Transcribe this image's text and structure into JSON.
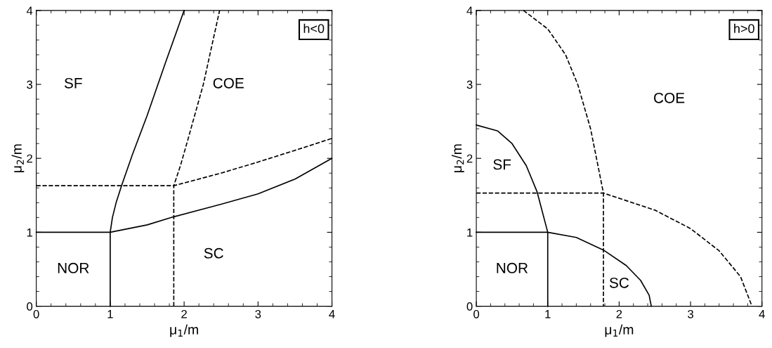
{
  "chart_data": [
    {
      "type": "line",
      "xlabel": "μ$_{1}$/m",
      "ylabel": "μ$_{2}$/m",
      "xlim": [
        0,
        4
      ],
      "ylim": [
        0,
        4
      ],
      "xticks": [
        0,
        1,
        2,
        3,
        4
      ],
      "yticks": [
        0,
        1,
        2,
        3,
        4
      ],
      "grid": false,
      "legend": false,
      "annotations": [
        "h<0",
        "SF",
        "COE",
        "NOR",
        "SC"
      ],
      "series": [
        {
          "color": "#000000",
          "line_style": "solid",
          "x": [
            0,
            1,
            1.5,
            1.86,
            2.5,
            3,
            3.5,
            4
          ],
          "values": [
            1,
            1,
            1.1,
            1.21,
            1.38,
            1.52,
            1.72,
            2.0
          ]
        },
        {
          "color": "#000000",
          "line_style": "solid",
          "x": [
            1,
            1,
            1.03,
            1.08,
            1.15,
            1.3,
            1.5,
            1.75,
            2.0
          ],
          "values": [
            0,
            1,
            1.2,
            1.4,
            1.62,
            2.05,
            2.58,
            3.3,
            4
          ]
        },
        {
          "color": "#000000",
          "line_style": "dashed",
          "x": [
            0,
            1.86,
            2.5,
            3,
            3.6,
            4
          ],
          "values": [
            1.63,
            1.63,
            1.8,
            1.95,
            2.14,
            2.27
          ]
        },
        {
          "color": "#000000",
          "line_style": "dashed",
          "x": [
            1.86,
            1.86,
            1.95,
            2.05,
            2.26,
            2.48
          ],
          "values": [
            0,
            1.63,
            1.9,
            2.25,
            3.0,
            4
          ]
        }
      ]
    },
    {
      "type": "line",
      "xlabel": "μ$_{1}$/m",
      "ylabel": "μ$_{2}$/m",
      "xlim": [
        0,
        4
      ],
      "ylim": [
        0,
        4
      ],
      "xticks": [
        0,
        1,
        2,
        3,
        4
      ],
      "yticks": [
        0,
        1,
        2,
        3,
        4
      ],
      "grid": false,
      "legend": false,
      "annotations": [
        "h>0",
        "SF",
        "COE",
        "NOR",
        "SC"
      ],
      "series": [
        {
          "color": "#000000",
          "line_style": "solid",
          "x": [
            0,
            1,
            1.4,
            1.78,
            2.1,
            2.3,
            2.42,
            2.45
          ],
          "values": [
            1,
            1,
            0.93,
            0.76,
            0.55,
            0.35,
            0.15,
            0
          ]
        },
        {
          "color": "#000000",
          "line_style": "solid",
          "x": [
            0,
            0.3,
            0.5,
            0.7,
            0.85,
            1,
            1
          ],
          "values": [
            2.45,
            2.37,
            2.2,
            1.9,
            1.55,
            1,
            0
          ]
        },
        {
          "color": "#000000",
          "line_style": "dashed",
          "x": [
            0,
            1.78,
            2.5,
            3,
            3.4,
            3.7,
            3.86
          ],
          "values": [
            1.53,
            1.53,
            1.3,
            1.05,
            0.75,
            0.4,
            0
          ]
        },
        {
          "color": "#000000",
          "line_style": "dashed",
          "x": [
            0.66,
            1.0,
            1.25,
            1.42,
            1.6,
            1.78,
            1.78
          ],
          "values": [
            4,
            3.75,
            3.4,
            3.0,
            2.4,
            1.53,
            0
          ]
        }
      ]
    }
  ]
}
